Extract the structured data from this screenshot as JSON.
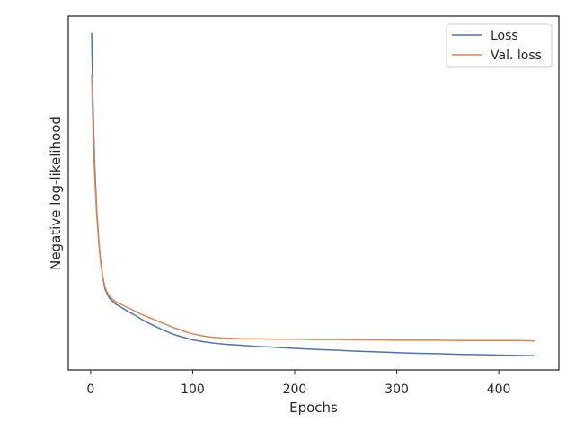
{
  "chart_data": {
    "type": "line",
    "title": "",
    "xlabel": "Epochs",
    "ylabel": "Negative log-likelihood",
    "xlim": [
      -21.9,
      458.9
    ],
    "ylim": [
      0,
      1
    ],
    "x_ticks": [
      0,
      100,
      200,
      300,
      400
    ],
    "y_ticks_visible": false,
    "grid": false,
    "legend": "top-right",
    "series": [
      {
        "name": "Loss",
        "color": "#4c72b0",
        "points": [
          [
            1,
            0.952
          ],
          [
            2,
            0.79
          ],
          [
            3,
            0.67
          ],
          [
            4,
            0.58
          ],
          [
            5,
            0.51
          ],
          [
            6,
            0.45
          ],
          [
            8,
            0.365
          ],
          [
            10,
            0.3
          ],
          [
            12,
            0.26
          ],
          [
            14,
            0.23
          ],
          [
            16,
            0.215
          ],
          [
            18,
            0.205
          ],
          [
            20,
            0.198
          ],
          [
            25,
            0.185
          ],
          [
            30,
            0.177
          ],
          [
            35,
            0.168
          ],
          [
            40,
            0.16
          ],
          [
            45,
            0.152
          ],
          [
            50,
            0.143
          ],
          [
            55,
            0.135
          ],
          [
            60,
            0.128
          ],
          [
            65,
            0.121
          ],
          [
            70,
            0.114
          ],
          [
            75,
            0.108
          ],
          [
            80,
            0.102
          ],
          [
            85,
            0.097
          ],
          [
            90,
            0.093
          ],
          [
            95,
            0.089
          ],
          [
            100,
            0.085
          ],
          [
            110,
            0.08
          ],
          [
            120,
            0.076
          ],
          [
            130,
            0.073
          ],
          [
            140,
            0.071
          ],
          [
            150,
            0.069
          ],
          [
            160,
            0.067
          ],
          [
            180,
            0.064
          ],
          [
            200,
            0.061
          ],
          [
            220,
            0.058
          ],
          [
            240,
            0.056
          ],
          [
            260,
            0.053
          ],
          [
            280,
            0.051
          ],
          [
            300,
            0.049
          ],
          [
            320,
            0.047
          ],
          [
            340,
            0.046
          ],
          [
            360,
            0.044
          ],
          [
            380,
            0.043
          ],
          [
            400,
            0.042
          ],
          [
            420,
            0.041
          ],
          [
            436,
            0.04
          ]
        ]
      },
      {
        "name": "Val. loss",
        "color": "#dd8452",
        "points": [
          [
            1,
            0.835
          ],
          [
            2,
            0.72
          ],
          [
            3,
            0.62
          ],
          [
            4,
            0.55
          ],
          [
            5,
            0.49
          ],
          [
            6,
            0.44
          ],
          [
            8,
            0.36
          ],
          [
            10,
            0.3
          ],
          [
            12,
            0.26
          ],
          [
            14,
            0.235
          ],
          [
            16,
            0.22
          ],
          [
            18,
            0.21
          ],
          [
            20,
            0.203
          ],
          [
            25,
            0.192
          ],
          [
            30,
            0.185
          ],
          [
            35,
            0.178
          ],
          [
            40,
            0.171
          ],
          [
            45,
            0.164
          ],
          [
            50,
            0.157
          ],
          [
            55,
            0.151
          ],
          [
            60,
            0.145
          ],
          [
            65,
            0.139
          ],
          [
            70,
            0.133
          ],
          [
            75,
            0.127
          ],
          [
            80,
            0.121
          ],
          [
            85,
            0.116
          ],
          [
            90,
            0.111
          ],
          [
            95,
            0.106
          ],
          [
            100,
            0.102
          ],
          [
            110,
            0.096
          ],
          [
            120,
            0.092
          ],
          [
            130,
            0.09
          ],
          [
            140,
            0.089
          ],
          [
            150,
            0.088
          ],
          [
            160,
            0.088
          ],
          [
            180,
            0.087
          ],
          [
            200,
            0.087
          ],
          [
            220,
            0.086
          ],
          [
            240,
            0.086
          ],
          [
            260,
            0.085
          ],
          [
            280,
            0.085
          ],
          [
            300,
            0.084
          ],
          [
            320,
            0.084
          ],
          [
            340,
            0.084
          ],
          [
            360,
            0.083
          ],
          [
            380,
            0.083
          ],
          [
            400,
            0.083
          ],
          [
            420,
            0.083
          ],
          [
            436,
            0.082
          ]
        ]
      }
    ]
  }
}
